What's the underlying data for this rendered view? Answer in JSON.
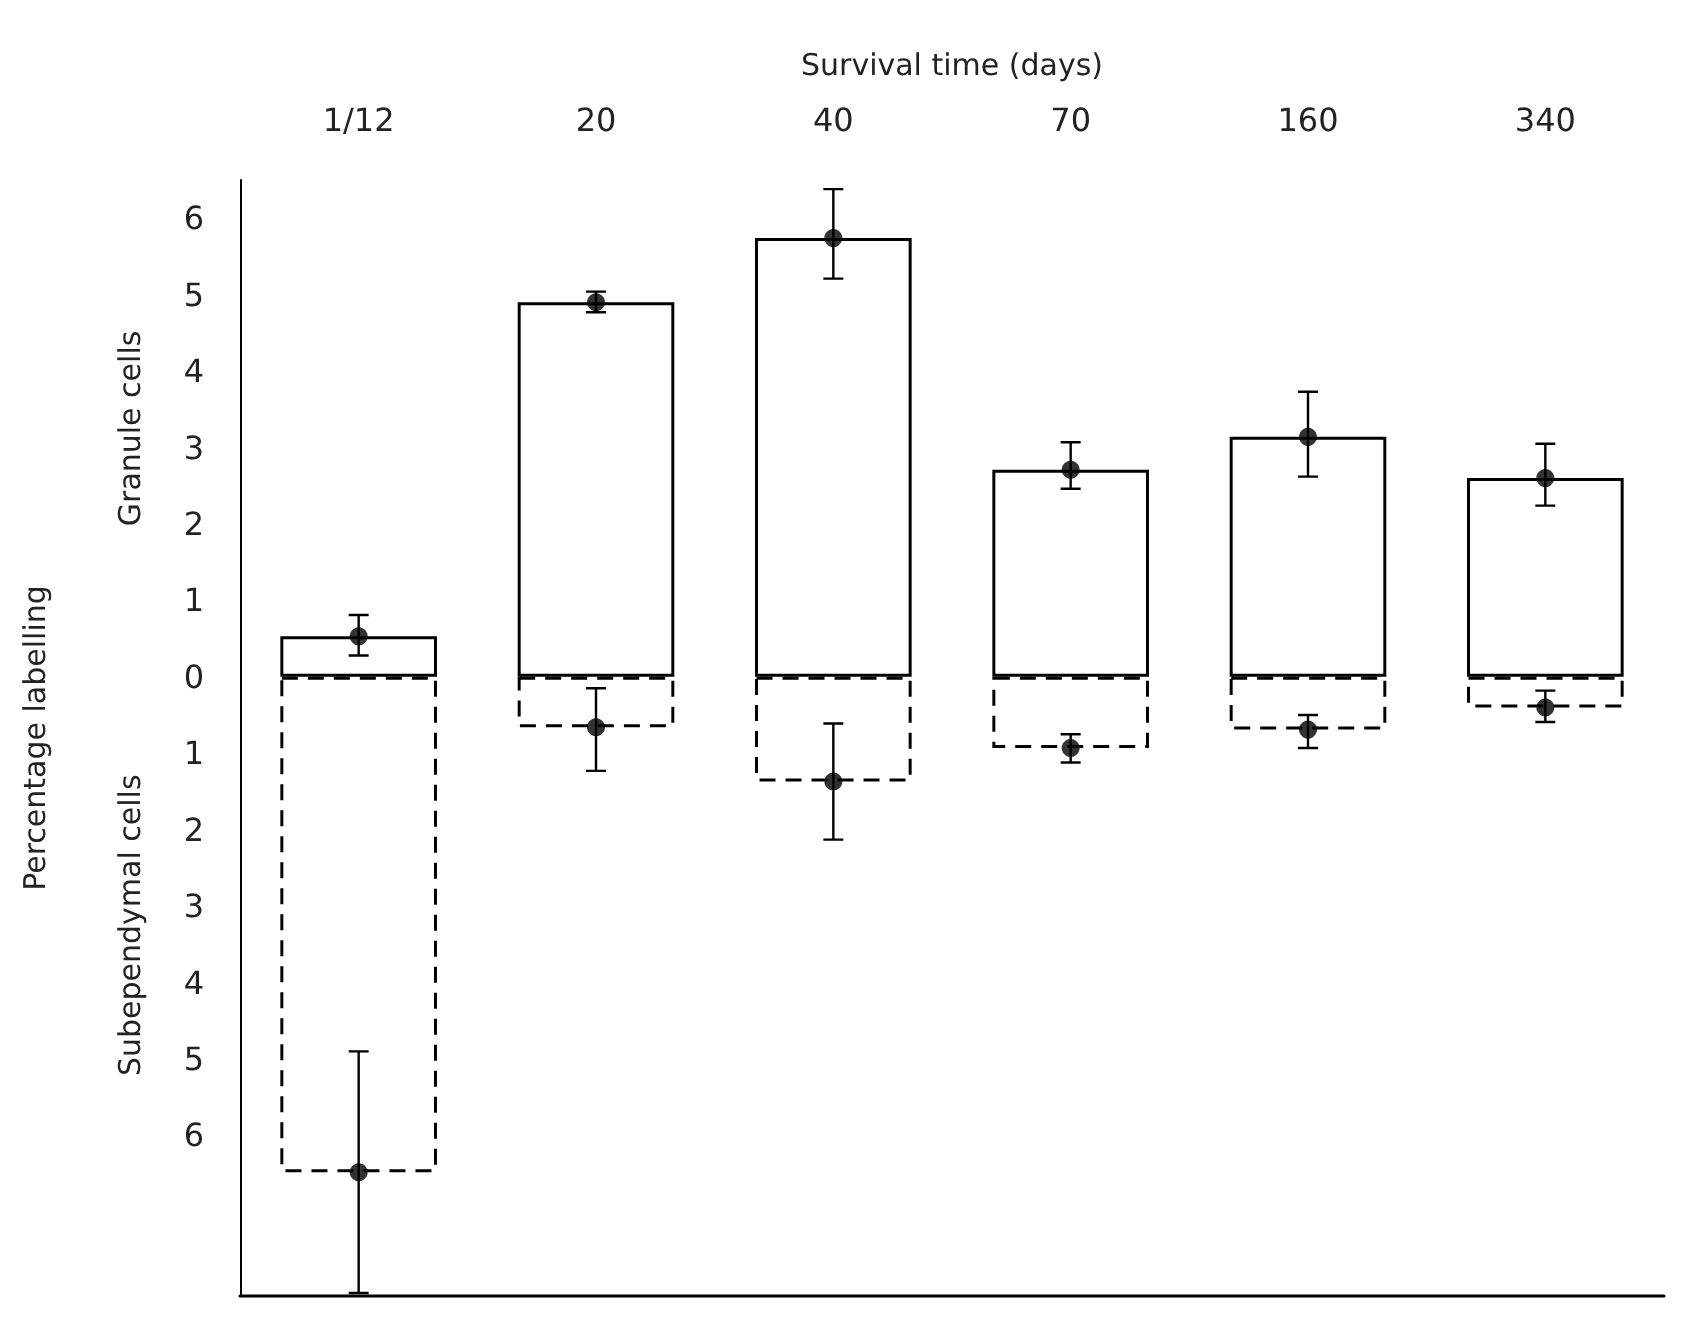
{
  "chart_data": {
    "type": "bar",
    "xlabel": "Survival time (days)",
    "ylabel": "Percentage labelling",
    "annotations": [
      "Granule cells",
      "Subependymal cells"
    ],
    "categories": [
      "1/12",
      "20",
      "40",
      "70",
      "160",
      "340"
    ],
    "stacked": true,
    "marker": "circle",
    "series": [
      {
        "color": "#000000",
        "line_style": "solid",
        "values": [
          0.53,
          4.9,
          5.74,
          2.71,
          3.14,
          2.6
        ],
        "errors": [
          [
            0.28,
            0.81
          ],
          [
            4.77,
            5.04
          ],
          [
            5.21,
            6.38
          ],
          [
            2.46,
            3.07
          ],
          [
            2.62,
            3.73
          ],
          [
            2.24,
            3.05
          ]
        ]
      },
      {
        "color": "#000000",
        "line_style": "dashed",
        "values": [
          -6.48,
          -0.66,
          -1.37,
          -0.93,
          -0.69,
          -0.4
        ],
        "errors": [
          [
            -8.06,
            -4.9
          ],
          [
            -1.23,
            -0.15
          ],
          [
            -2.13,
            -0.61
          ],
          [
            -1.12,
            -0.75
          ],
          [
            -0.93,
            -0.5
          ],
          [
            -0.59,
            -0.18
          ]
        ]
      },
      {
        "type": "scatter",
        "color": "#000000",
        "x": [
          "1/12",
          "20",
          "40",
          "70",
          "160",
          "340"
        ],
        "values": [
          0.53,
          4.9,
          5.74,
          2.71,
          3.14,
          2.6
        ]
      },
      {
        "type": "scatter",
        "color": "#000000",
        "x": [
          "1/12",
          "20",
          "40",
          "70",
          "160",
          "340"
        ],
        "values": [
          -6.48,
          -0.66,
          -1.37,
          -0.93,
          -0.69,
          -0.4
        ]
      }
    ],
    "ylim": [
      -8.1,
      6.5
    ],
    "yticks": [
      {
        "value": -6,
        "label": "6"
      },
      {
        "value": -5,
        "label": "5"
      },
      {
        "value": -4,
        "label": "4"
      },
      {
        "value": -3,
        "label": "3"
      },
      {
        "value": -2,
        "label": "2"
      },
      {
        "value": -1,
        "label": "1"
      },
      0,
      1,
      2,
      3,
      4,
      5,
      6
    ],
    "grid": false
  }
}
